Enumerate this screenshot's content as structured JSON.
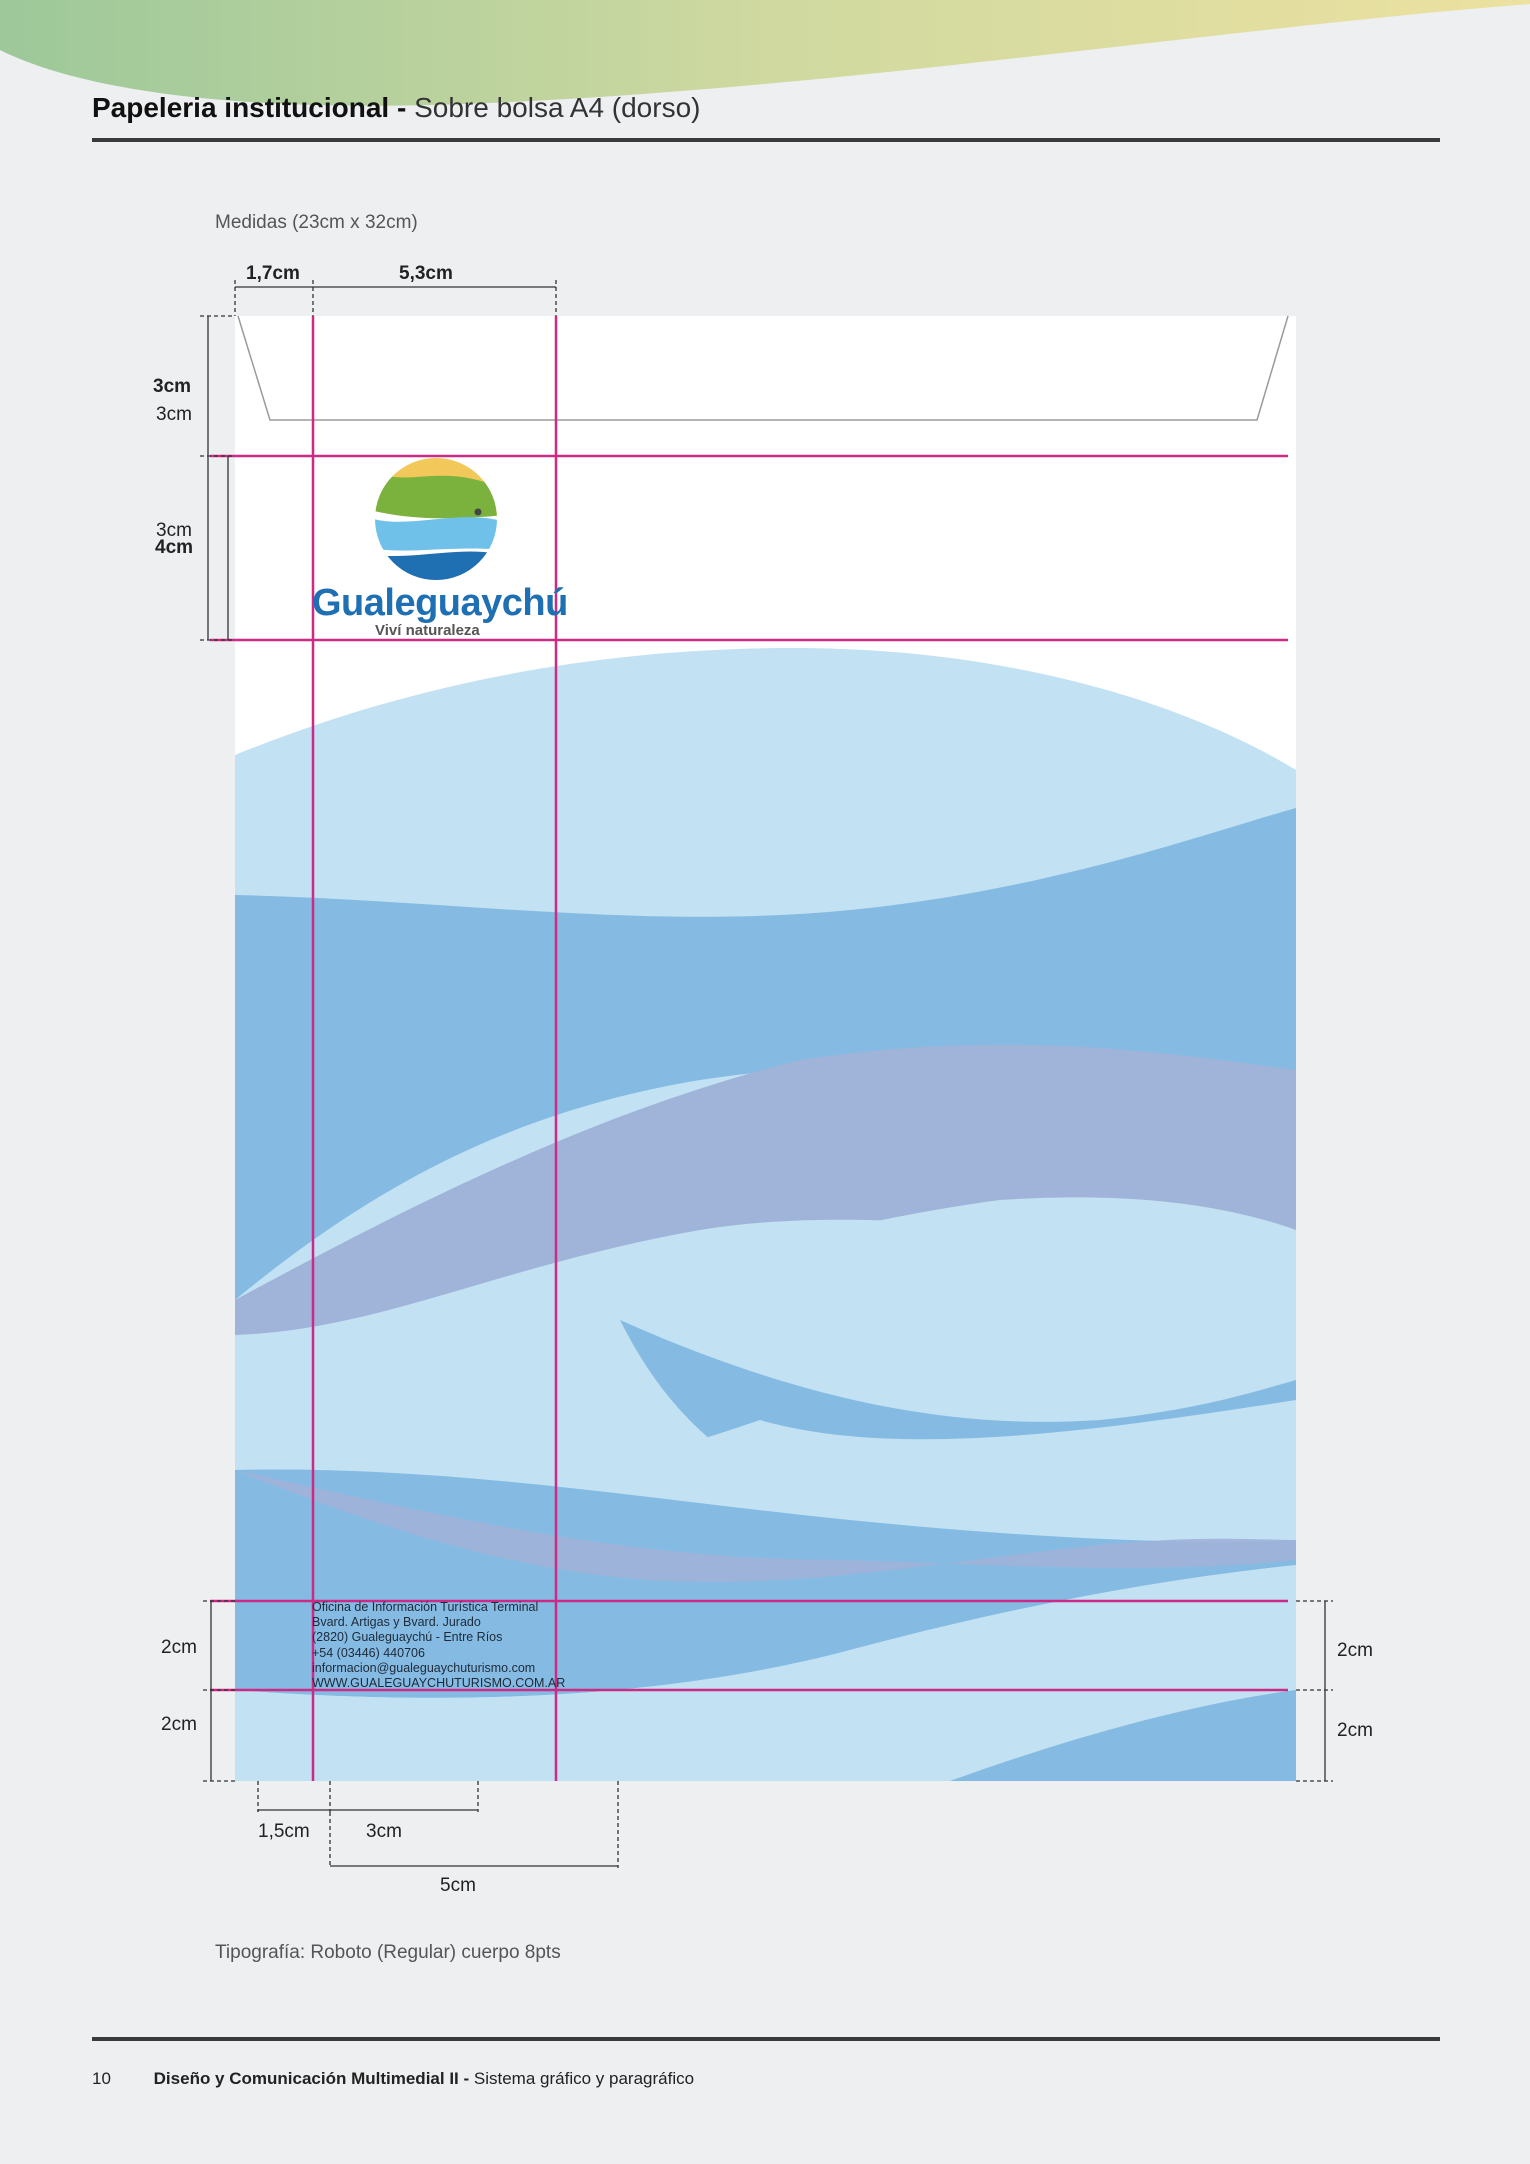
{
  "header": {
    "title_bold": "Papeleria institucional -",
    "title_light": "Sobre bolsa A4 (dorso)"
  },
  "measures_caption": "Medidas (23cm x 32cm)",
  "dimensions": {
    "top_left_margin": "1,7cm",
    "top_logo_width": "5,3cm",
    "left_flap": "3cm",
    "left_flap_inner": "3cm",
    "left_logo_a": "3cm",
    "left_logo_b": "4cm",
    "left_footer_upper": "2cm",
    "left_footer_lower": "2cm",
    "right_footer_upper": "2cm",
    "right_footer_lower": "2cm",
    "bottom_margin": "1,5cm",
    "bottom_text_width": "3cm",
    "bottom_block_width": "5cm"
  },
  "logo": {
    "name": "Gualeguaychú",
    "tagline": "Viví naturaleza"
  },
  "address_lines": [
    "Oficina de Información Turística Terminal",
    "Bvard. Artigas y Bvard. Jurado",
    "(2820) Gualeguaychú - Entre Ríos",
    "+54 (03446) 440706",
    "informacion@gualeguaychuturismo.com",
    "WWW.GUALEGUAYCHUTURISMO.COM.AR"
  ],
  "typography_note": "Tipografía: Roboto (Regular) cuerpo 8pts",
  "footer": {
    "page_number": "10",
    "title_bold": "Diseño y Comunicación Multimedial II -",
    "title_light": "Sistema gráfico y paragráfico"
  },
  "colors": {
    "guide_magenta": "#cc2a86",
    "wave_light": "#c2e1f3",
    "wave_mid": "#85bbe2",
    "wave_purple": "#a0b3d9",
    "brand_blue": "#1f6fb3"
  }
}
